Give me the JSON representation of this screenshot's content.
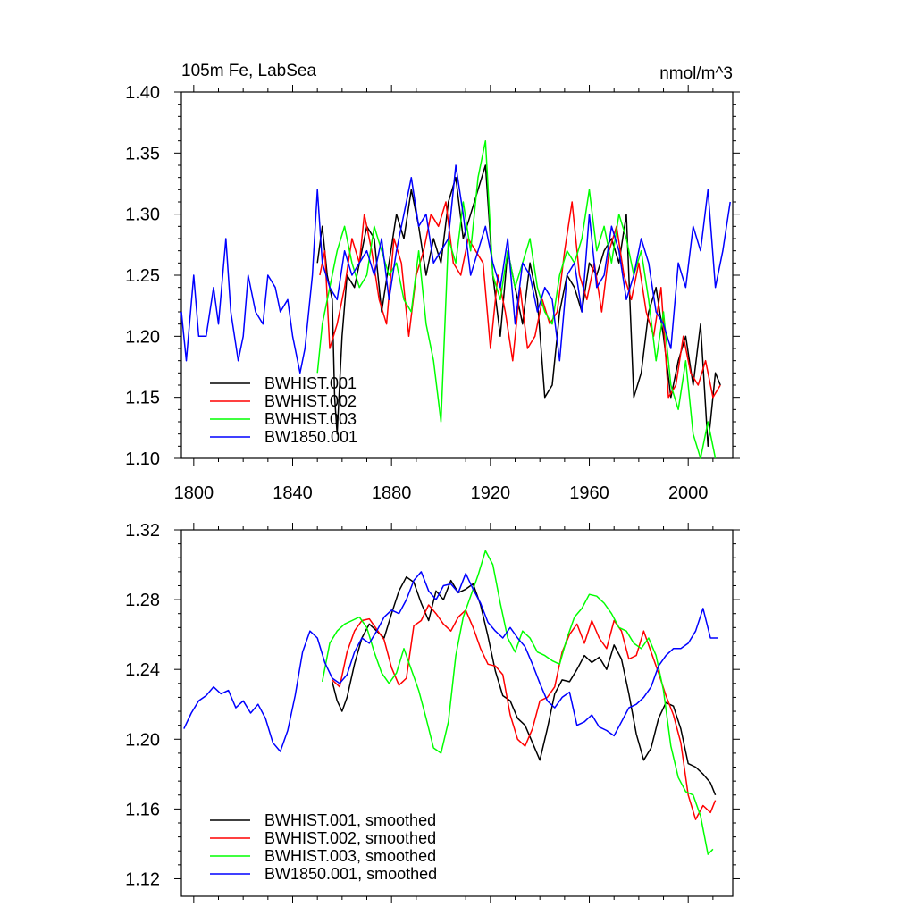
{
  "chart_data": [
    {
      "type": "line",
      "title": "105m Fe, LabSea",
      "units": "nmol/m^3",
      "xlim": [
        1795,
        2018
      ],
      "ylim": [
        1.1,
        1.4
      ],
      "xticks": [
        1800,
        1840,
        1880,
        1920,
        1960,
        2000
      ],
      "yticks": [
        1.1,
        1.15,
        1.2,
        1.25,
        1.3,
        1.35,
        1.4
      ],
      "ytick_labels": [
        "1.10",
        "1.15",
        "1.20",
        "1.25",
        "1.30",
        "1.35",
        "1.40"
      ],
      "legend_position": "bottom-left",
      "series": [
        {
          "name": "BWHIST.001",
          "color": "#000000",
          "x": [
            1850,
            1852,
            1854,
            1856,
            1857,
            1858,
            1860,
            1862,
            1865,
            1868,
            1870,
            1873,
            1876,
            1879,
            1882,
            1885,
            1888,
            1891,
            1894,
            1897,
            1900,
            1903,
            1906,
            1909,
            1912,
            1915,
            1918,
            1921,
            1924,
            1927,
            1930,
            1933,
            1936,
            1939,
            1942,
            1945,
            1948,
            1951,
            1954,
            1957,
            1960,
            1963,
            1966,
            1969,
            1972,
            1975,
            1978,
            1981,
            1984,
            1987,
            1990,
            1993,
            1996,
            1999,
            2002,
            2005,
            2008,
            2011,
            2013
          ],
          "values": [
            1.26,
            1.29,
            1.25,
            1.23,
            1.15,
            1.12,
            1.2,
            1.25,
            1.24,
            1.27,
            1.29,
            1.28,
            1.22,
            1.26,
            1.3,
            1.28,
            1.32,
            1.29,
            1.25,
            1.28,
            1.26,
            1.31,
            1.33,
            1.28,
            1.3,
            1.32,
            1.34,
            1.25,
            1.2,
            1.27,
            1.24,
            1.21,
            1.26,
            1.23,
            1.15,
            1.16,
            1.22,
            1.25,
            1.24,
            1.22,
            1.26,
            1.25,
            1.27,
            1.28,
            1.26,
            1.3,
            1.15,
            1.17,
            1.22,
            1.24,
            1.2,
            1.15,
            1.18,
            1.2,
            1.16,
            1.21,
            1.11,
            1.17,
            1.16
          ]
        },
        {
          "name": "BWHIST.002",
          "color": "#ff0000",
          "x": [
            1851,
            1853,
            1855,
            1858,
            1861,
            1864,
            1867,
            1869,
            1872,
            1875,
            1878,
            1881,
            1884,
            1887,
            1890,
            1893,
            1896,
            1899,
            1902,
            1905,
            1908,
            1911,
            1914,
            1917,
            1920,
            1923,
            1926,
            1929,
            1932,
            1935,
            1938,
            1941,
            1944,
            1947,
            1950,
            1953,
            1956,
            1959,
            1962,
            1965,
            1968,
            1971,
            1974,
            1977,
            1980,
            1983,
            1986,
            1989,
            1992,
            1995,
            1998,
            2001,
            2004,
            2007,
            2010,
            2013
          ],
          "values": [
            1.25,
            1.27,
            1.19,
            1.21,
            1.24,
            1.28,
            1.26,
            1.3,
            1.27,
            1.23,
            1.21,
            1.28,
            1.26,
            1.2,
            1.25,
            1.27,
            1.3,
            1.29,
            1.31,
            1.26,
            1.25,
            1.28,
            1.27,
            1.26,
            1.19,
            1.25,
            1.22,
            1.18,
            1.24,
            1.19,
            1.2,
            1.23,
            1.21,
            1.22,
            1.27,
            1.31,
            1.25,
            1.23,
            1.26,
            1.22,
            1.27,
            1.29,
            1.25,
            1.23,
            1.26,
            1.22,
            1.2,
            1.24,
            1.15,
            1.16,
            1.2,
            1.17,
            1.16,
            1.18,
            1.15,
            1.16
          ]
        },
        {
          "name": "BWHIST.003",
          "color": "#00ff00",
          "x": [
            1850,
            1852,
            1855,
            1858,
            1861,
            1864,
            1867,
            1870,
            1873,
            1876,
            1879,
            1882,
            1885,
            1888,
            1891,
            1894,
            1897,
            1900,
            1903,
            1906,
            1909,
            1912,
            1915,
            1918,
            1921,
            1924,
            1927,
            1930,
            1933,
            1936,
            1939,
            1942,
            1945,
            1948,
            1951,
            1954,
            1957,
            1960,
            1963,
            1966,
            1969,
            1972,
            1975,
            1978,
            1981,
            1984,
            1987,
            1990,
            1993,
            1996,
            1999,
            2002,
            2005,
            2008,
            2011
          ],
          "values": [
            1.17,
            1.21,
            1.24,
            1.27,
            1.29,
            1.26,
            1.24,
            1.25,
            1.29,
            1.27,
            1.25,
            1.26,
            1.23,
            1.22,
            1.27,
            1.21,
            1.18,
            1.13,
            1.28,
            1.26,
            1.31,
            1.27,
            1.33,
            1.36,
            1.25,
            1.23,
            1.27,
            1.24,
            1.26,
            1.28,
            1.24,
            1.22,
            1.21,
            1.25,
            1.27,
            1.26,
            1.28,
            1.32,
            1.27,
            1.29,
            1.26,
            1.3,
            1.28,
            1.25,
            1.27,
            1.23,
            1.18,
            1.22,
            1.16,
            1.14,
            1.18,
            1.12,
            1.1,
            1.13,
            1.1
          ]
        },
        {
          "name": "BW1850.001",
          "color": "#0000ff",
          "x": [
            1795,
            1797,
            1800,
            1802,
            1805,
            1808,
            1810,
            1813,
            1815,
            1818,
            1820,
            1822,
            1825,
            1828,
            1830,
            1833,
            1835,
            1838,
            1840,
            1843,
            1845,
            1848,
            1850,
            1852,
            1855,
            1858,
            1861,
            1864,
            1867,
            1870,
            1873,
            1876,
            1879,
            1882,
            1885,
            1888,
            1891,
            1894,
            1897,
            1900,
            1903,
            1906,
            1909,
            1912,
            1915,
            1918,
            1921,
            1924,
            1927,
            1930,
            1933,
            1936,
            1939,
            1942,
            1945,
            1948,
            1951,
            1954,
            1957,
            1960,
            1963,
            1966,
            1969,
            1972,
            1975,
            1978,
            1981,
            1984,
            1987,
            1990,
            1993,
            1996,
            1999,
            2002,
            2005,
            2008,
            2011,
            2014,
            2017
          ],
          "values": [
            1.22,
            1.18,
            1.25,
            1.2,
            1.2,
            1.24,
            1.21,
            1.28,
            1.22,
            1.18,
            1.2,
            1.25,
            1.22,
            1.21,
            1.25,
            1.24,
            1.22,
            1.23,
            1.2,
            1.17,
            1.19,
            1.25,
            1.32,
            1.26,
            1.24,
            1.23,
            1.27,
            1.25,
            1.26,
            1.27,
            1.25,
            1.28,
            1.23,
            1.27,
            1.3,
            1.33,
            1.29,
            1.3,
            1.26,
            1.27,
            1.28,
            1.34,
            1.3,
            1.25,
            1.27,
            1.29,
            1.26,
            1.24,
            1.28,
            1.21,
            1.26,
            1.25,
            1.22,
            1.24,
            1.23,
            1.18,
            1.25,
            1.26,
            1.22,
            1.3,
            1.24,
            1.25,
            1.29,
            1.27,
            1.23,
            1.25,
            1.28,
            1.26,
            1.22,
            1.21,
            1.19,
            1.26,
            1.24,
            1.29,
            1.27,
            1.32,
            1.24,
            1.27,
            1.31
          ]
        }
      ]
    },
    {
      "type": "line",
      "xlim": [
        1795,
        2018
      ],
      "ylim": [
        1.11,
        1.32
      ],
      "xticks": [
        1800,
        1840,
        1880,
        1920,
        1960,
        2000
      ],
      "yticks": [
        1.12,
        1.16,
        1.2,
        1.24,
        1.28,
        1.32
      ],
      "ytick_labels": [
        "1.12",
        "1.16",
        "1.20",
        "1.24",
        "1.28",
        "1.32"
      ],
      "legend_position": "bottom-left",
      "series": [
        {
          "name": "BWHIST.001, smoothed",
          "color": "#000000",
          "x": [
            1856,
            1858,
            1860,
            1862,
            1865,
            1868,
            1871,
            1874,
            1877,
            1880,
            1883,
            1886,
            1889,
            1892,
            1895,
            1898,
            1901,
            1904,
            1907,
            1910,
            1913,
            1916,
            1919,
            1922,
            1925,
            1928,
            1931,
            1934,
            1937,
            1940,
            1943,
            1946,
            1949,
            1952,
            1955,
            1958,
            1961,
            1964,
            1967,
            1970,
            1973,
            1976,
            1979,
            1982,
            1985,
            1988,
            1991,
            1994,
            1997,
            2000,
            2003,
            2006,
            2009,
            2011
          ],
          "values": [
            1.233,
            1.222,
            1.216,
            1.224,
            1.243,
            1.258,
            1.266,
            1.262,
            1.258,
            1.272,
            1.285,
            1.293,
            1.29,
            1.278,
            1.268,
            1.285,
            1.28,
            1.291,
            1.284,
            1.286,
            1.289,
            1.277,
            1.259,
            1.239,
            1.225,
            1.222,
            1.212,
            1.208,
            1.198,
            1.188,
            1.206,
            1.226,
            1.234,
            1.233,
            1.24,
            1.248,
            1.244,
            1.247,
            1.24,
            1.254,
            1.246,
            1.226,
            1.203,
            1.188,
            1.195,
            1.212,
            1.221,
            1.219,
            1.206,
            1.186,
            1.184,
            1.18,
            1.175,
            1.168
          ]
        },
        {
          "name": "BWHIST.002, smoothed",
          "color": "#ff0000",
          "x": [
            1856,
            1859,
            1862,
            1865,
            1868,
            1871,
            1874,
            1877,
            1880,
            1883,
            1886,
            1889,
            1892,
            1895,
            1898,
            1901,
            1904,
            1907,
            1910,
            1913,
            1916,
            1919,
            1922,
            1925,
            1928,
            1931,
            1934,
            1937,
            1940,
            1943,
            1946,
            1949,
            1952,
            1955,
            1958,
            1961,
            1964,
            1967,
            1970,
            1973,
            1976,
            1979,
            1982,
            1985,
            1988,
            1991,
            1994,
            1997,
            2000,
            2003,
            2006,
            2009,
            2011
          ],
          "values": [
            1.234,
            1.23,
            1.25,
            1.262,
            1.268,
            1.269,
            1.263,
            1.257,
            1.241,
            1.231,
            1.235,
            1.265,
            1.268,
            1.277,
            1.272,
            1.266,
            1.262,
            1.27,
            1.274,
            1.264,
            1.252,
            1.243,
            1.242,
            1.237,
            1.214,
            1.2,
            1.196,
            1.206,
            1.222,
            1.224,
            1.23,
            1.25,
            1.26,
            1.266,
            1.255,
            1.268,
            1.258,
            1.252,
            1.268,
            1.262,
            1.246,
            1.248,
            1.262,
            1.25,
            1.238,
            1.225,
            1.214,
            1.198,
            1.168,
            1.154,
            1.162,
            1.158,
            1.165
          ]
        },
        {
          "name": "BWHIST.003, smoothed",
          "color": "#00ff00",
          "x": [
            1852,
            1855,
            1858,
            1861,
            1864,
            1867,
            1870,
            1873,
            1876,
            1879,
            1882,
            1885,
            1888,
            1891,
            1894,
            1897,
            1900,
            1903,
            1906,
            1909,
            1912,
            1915,
            1918,
            1921,
            1924,
            1927,
            1930,
            1933,
            1936,
            1939,
            1942,
            1945,
            1948,
            1951,
            1954,
            1957,
            1960,
            1963,
            1966,
            1969,
            1972,
            1975,
            1978,
            1981,
            1984,
            1987,
            1990,
            1993,
            1996,
            1999,
            2002,
            2005,
            2008,
            2010
          ],
          "values": [
            1.233,
            1.255,
            1.262,
            1.266,
            1.268,
            1.27,
            1.264,
            1.25,
            1.238,
            1.232,
            1.238,
            1.252,
            1.24,
            1.228,
            1.212,
            1.195,
            1.192,
            1.21,
            1.248,
            1.27,
            1.282,
            1.294,
            1.308,
            1.3,
            1.278,
            1.258,
            1.25,
            1.262,
            1.258,
            1.25,
            1.248,
            1.245,
            1.243,
            1.258,
            1.27,
            1.275,
            1.283,
            1.282,
            1.278,
            1.272,
            1.264,
            1.262,
            1.255,
            1.252,
            1.258,
            1.248,
            1.228,
            1.196,
            1.178,
            1.17,
            1.168,
            1.156,
            1.134,
            1.137
          ]
        },
        {
          "name": "BW1850.001, smoothed",
          "color": "#0000ff",
          "x": [
            1796,
            1799,
            1802,
            1805,
            1808,
            1811,
            1814,
            1817,
            1820,
            1823,
            1826,
            1829,
            1832,
            1835,
            1838,
            1841,
            1844,
            1847,
            1850,
            1853,
            1856,
            1859,
            1862,
            1865,
            1868,
            1871,
            1874,
            1877,
            1880,
            1883,
            1886,
            1889,
            1892,
            1895,
            1898,
            1901,
            1904,
            1907,
            1910,
            1913,
            1916,
            1919,
            1922,
            1925,
            1928,
            1931,
            1934,
            1937,
            1940,
            1943,
            1946,
            1949,
            1952,
            1955,
            1958,
            1961,
            1964,
            1967,
            1970,
            1973,
            1976,
            1979,
            1982,
            1985,
            1988,
            1991,
            1994,
            1997,
            2000,
            2003,
            2006,
            2009,
            2012
          ],
          "values": [
            1.206,
            1.215,
            1.222,
            1.225,
            1.23,
            1.226,
            1.228,
            1.218,
            1.222,
            1.215,
            1.22,
            1.212,
            1.198,
            1.193,
            1.205,
            1.225,
            1.25,
            1.262,
            1.258,
            1.244,
            1.235,
            1.232,
            1.237,
            1.25,
            1.258,
            1.255,
            1.262,
            1.27,
            1.274,
            1.272,
            1.28,
            1.291,
            1.296,
            1.285,
            1.28,
            1.288,
            1.289,
            1.284,
            1.295,
            1.286,
            1.278,
            1.267,
            1.262,
            1.258,
            1.264,
            1.258,
            1.253,
            1.243,
            1.232,
            1.222,
            1.218,
            1.224,
            1.227,
            1.208,
            1.21,
            1.214,
            1.207,
            1.205,
            1.202,
            1.21,
            1.218,
            1.22,
            1.224,
            1.23,
            1.242,
            1.248,
            1.252,
            1.252,
            1.255,
            1.262,
            1.275,
            1.258,
            1.258
          ]
        }
      ]
    }
  ]
}
